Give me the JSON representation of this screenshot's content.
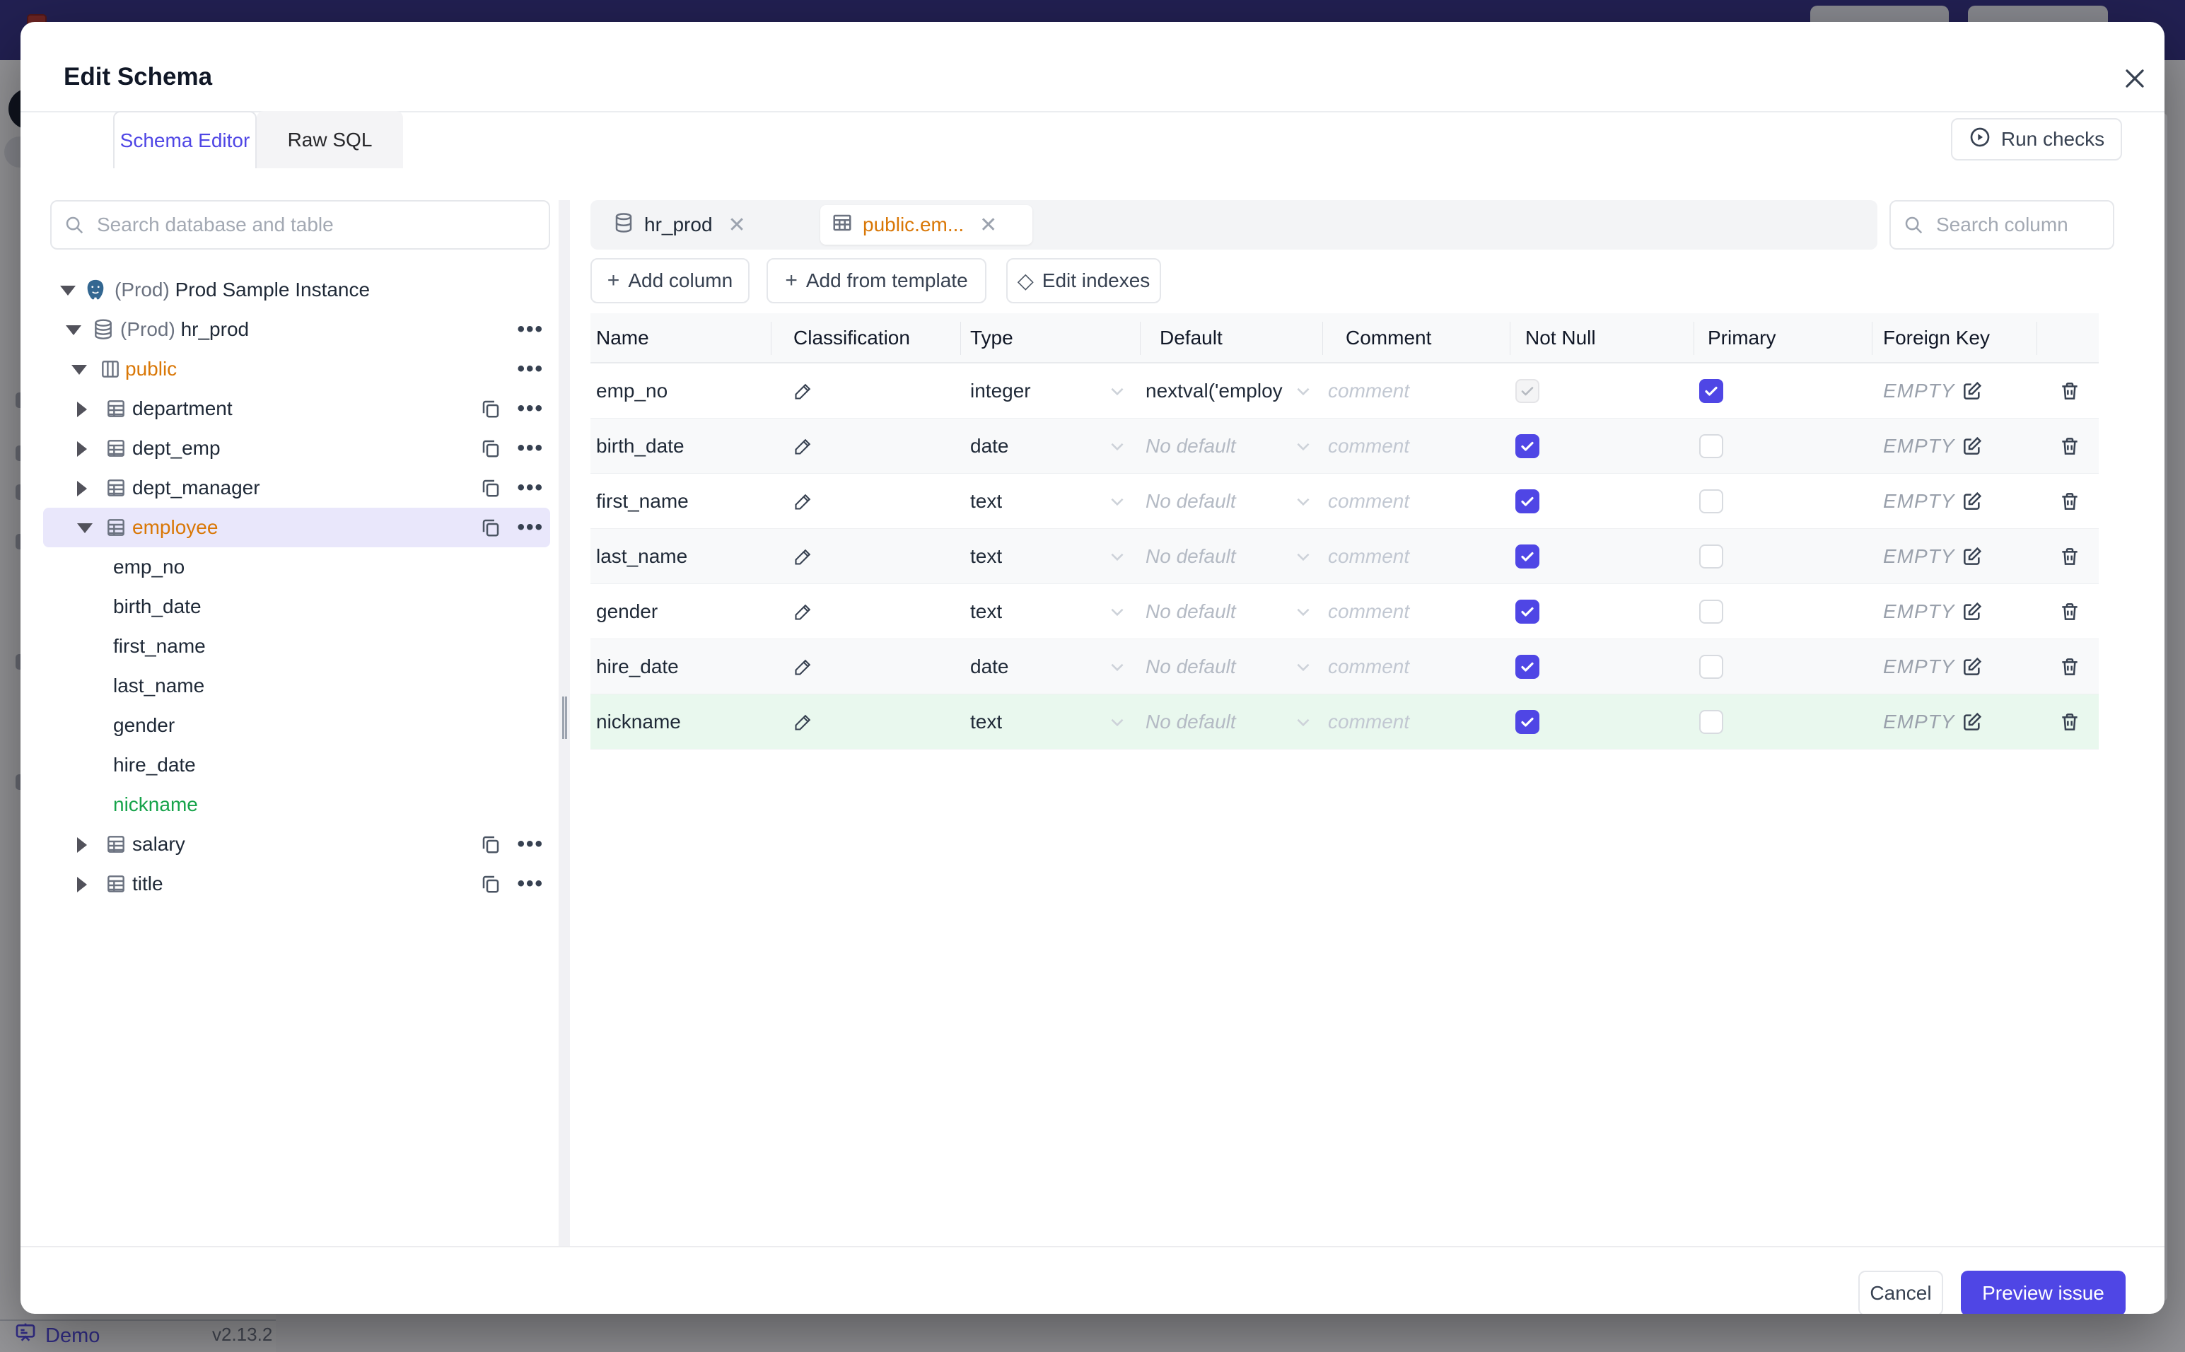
{
  "page": {
    "demo_label": "Demo",
    "version": "v2.13.2"
  },
  "modal": {
    "title": "Edit Schema",
    "tabs": [
      {
        "label": "Schema Editor"
      },
      {
        "label": "Raw SQL"
      }
    ],
    "run_checks_label": "Run checks",
    "footer": {
      "cancel_label": "Cancel",
      "submit_label": "Preview issue"
    }
  },
  "sidebar": {
    "search_placeholder": "Search database and table",
    "tree": [
      {
        "id": "instance",
        "caret": "down",
        "icon": "postgresql",
        "prefix": "(Prod) ",
        "label": "Prod Sample Instance",
        "color": "default",
        "selected": false,
        "actions": [],
        "indent": 0
      },
      {
        "id": "database",
        "caret": "down",
        "icon": "database",
        "prefix": "(Prod) ",
        "label": "hr_prod",
        "color": "default",
        "selected": false,
        "actions": [
          "menu"
        ],
        "indent": 1
      },
      {
        "id": "schema",
        "caret": "down",
        "icon": "schema",
        "prefix": "",
        "label": "public",
        "color": "orange",
        "selected": false,
        "actions": [
          "menu"
        ],
        "indent": 2
      },
      {
        "id": "table",
        "caret": "right",
        "icon": "table",
        "prefix": "",
        "label": "department",
        "color": "default",
        "selected": false,
        "actions": [
          "copy",
          "menu"
        ],
        "indent": 3
      },
      {
        "id": "table",
        "caret": "right",
        "icon": "table",
        "prefix": "",
        "label": "dept_emp",
        "color": "default",
        "selected": false,
        "actions": [
          "copy",
          "menu"
        ],
        "indent": 3
      },
      {
        "id": "table",
        "caret": "right",
        "icon": "table",
        "prefix": "",
        "label": "dept_manager",
        "color": "default",
        "selected": false,
        "actions": [
          "copy",
          "menu"
        ],
        "indent": 3
      },
      {
        "id": "table",
        "caret": "down",
        "icon": "table",
        "prefix": "",
        "label": "employee",
        "color": "orange",
        "selected": true,
        "actions": [
          "copy",
          "menu"
        ],
        "indent": 3
      },
      {
        "id": "column",
        "caret": null,
        "icon": null,
        "prefix": "",
        "label": "emp_no",
        "color": "default",
        "selected": false,
        "actions": [],
        "indent": 3
      },
      {
        "id": "column",
        "caret": null,
        "icon": null,
        "prefix": "",
        "label": "birth_date",
        "color": "default",
        "selected": false,
        "actions": [],
        "indent": 3
      },
      {
        "id": "column",
        "caret": null,
        "icon": null,
        "prefix": "",
        "label": "first_name",
        "color": "default",
        "selected": false,
        "actions": [],
        "indent": 3
      },
      {
        "id": "column",
        "caret": null,
        "icon": null,
        "prefix": "",
        "label": "last_name",
        "color": "default",
        "selected": false,
        "actions": [],
        "indent": 3
      },
      {
        "id": "column",
        "caret": null,
        "icon": null,
        "prefix": "",
        "label": "gender",
        "color": "default",
        "selected": false,
        "actions": [],
        "indent": 3
      },
      {
        "id": "column",
        "caret": null,
        "icon": null,
        "prefix": "",
        "label": "hire_date",
        "color": "default",
        "selected": false,
        "actions": [],
        "indent": 3
      },
      {
        "id": "column",
        "caret": null,
        "icon": null,
        "prefix": "",
        "label": "nickname",
        "color": "green",
        "selected": false,
        "actions": [],
        "indent": 3
      },
      {
        "id": "table",
        "caret": "right",
        "icon": "table",
        "prefix": "",
        "label": "salary",
        "color": "default",
        "selected": false,
        "actions": [
          "copy",
          "menu"
        ],
        "indent": 3
      },
      {
        "id": "table",
        "caret": "right",
        "icon": "table",
        "prefix": "",
        "label": "title",
        "color": "default",
        "selected": false,
        "actions": [
          "copy",
          "menu"
        ],
        "indent": 3
      }
    ]
  },
  "main": {
    "tabs": [
      {
        "label": "hr_prod",
        "icon": "database",
        "active": false
      },
      {
        "label": "public.em...",
        "icon": "table",
        "active": true
      }
    ],
    "actions": [
      {
        "label": "Add column",
        "glyph": "+"
      },
      {
        "label": "Add from template",
        "glyph": "+"
      },
      {
        "label": "Edit indexes",
        "glyph": "◇"
      }
    ],
    "search_placeholder": "Search column"
  },
  "table": {
    "headers": [
      "Name",
      "Classification",
      "Type",
      "Default",
      "Comment",
      "Not Null",
      "Primary",
      "Foreign Key"
    ],
    "no_default_placeholder": "No default",
    "comment_placeholder": "comment",
    "empty_label": "EMPTY",
    "rows": [
      {
        "name": "emp_no",
        "type": "integer",
        "default_value": "nextval('employ",
        "not_null_checked": true,
        "not_null_disabled": true,
        "primary": true,
        "state": "normal"
      },
      {
        "name": "birth_date",
        "type": "date",
        "default_value": null,
        "not_null_checked": true,
        "not_null_disabled": false,
        "primary": false,
        "state": "alt"
      },
      {
        "name": "first_name",
        "type": "text",
        "default_value": null,
        "not_null_checked": true,
        "not_null_disabled": false,
        "primary": false,
        "state": "normal"
      },
      {
        "name": "last_name",
        "type": "text",
        "default_value": null,
        "not_null_checked": true,
        "not_null_disabled": false,
        "primary": false,
        "state": "alt"
      },
      {
        "name": "gender",
        "type": "text",
        "default_value": null,
        "not_null_checked": true,
        "not_null_disabled": false,
        "primary": false,
        "state": "normal"
      },
      {
        "name": "hire_date",
        "type": "date",
        "default_value": null,
        "not_null_checked": true,
        "not_null_disabled": false,
        "primary": false,
        "state": "alt"
      },
      {
        "name": "nickname",
        "type": "text",
        "default_value": null,
        "not_null_checked": true,
        "not_null_disabled": false,
        "primary": false,
        "state": "new"
      }
    ]
  },
  "colors": {
    "accent": "#4f46e5",
    "topbar": "#312e81",
    "highlight_orange": "#d97706",
    "new_green": "#16a34a",
    "new_row_bg": "#e9f8ee",
    "selected_tree_bg": "#e9e7fb"
  }
}
